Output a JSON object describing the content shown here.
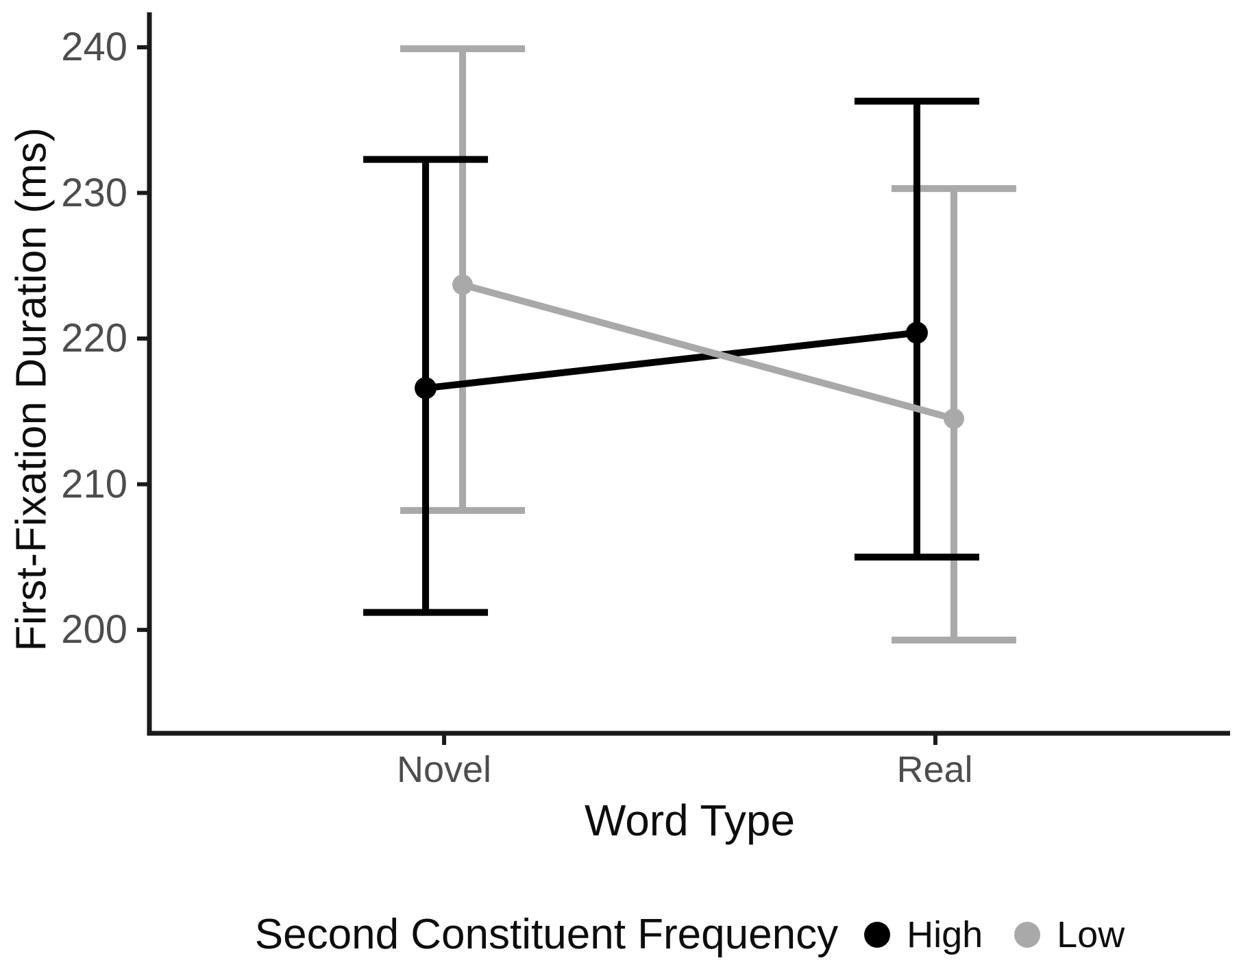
{
  "chart_data": {
    "type": "line",
    "title": "",
    "xlabel": "Word Type",
    "ylabel": "First-Fixation Duration (ms)",
    "categories": [
      "Novel",
      "Real"
    ],
    "y_ticks": [
      240,
      230,
      220,
      210,
      200
    ],
    "ylim": [
      192.9,
      242.4
    ],
    "grid": "off",
    "legend_title": "Second Constituent Frequency",
    "legend_position": "bottom",
    "error_bars": "95% CI",
    "series": [
      {
        "name": "High",
        "color": "#000000",
        "values": [
          216.6,
          220.4
        ],
        "ci_lower": [
          201.2,
          205.0
        ],
        "ci_upper": [
          232.3,
          236.3
        ]
      },
      {
        "name": "Low",
        "color": "#a9a9a9",
        "values": [
          223.7,
          214.5
        ],
        "ci_lower": [
          208.2,
          199.3
        ],
        "ci_upper": [
          239.9,
          230.3
        ]
      }
    ],
    "axis_color": "#1a1a1a",
    "tick_label_color": "#4d4d4d"
  }
}
